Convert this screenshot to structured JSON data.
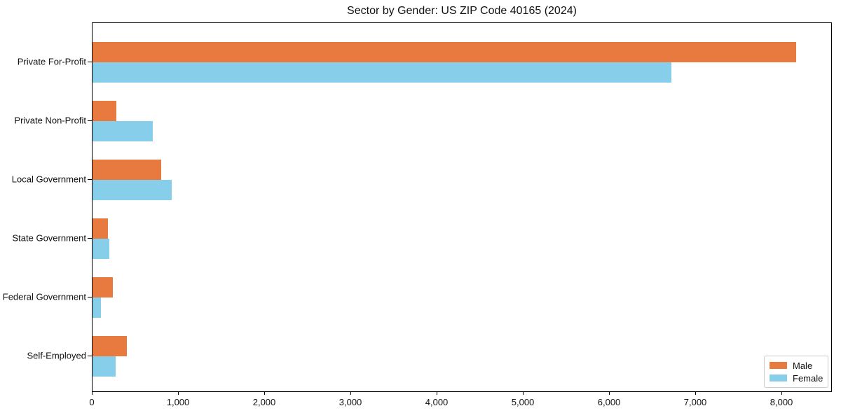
{
  "chart_data": {
    "type": "bar",
    "orientation": "horizontal",
    "title": "Sector by Gender: US ZIP Code 40165 (2024)",
    "xlabel": "",
    "ylabel": "",
    "categories": [
      "Private For-Profit",
      "Private Non-Profit",
      "Local Government",
      "State Government",
      "Federal Government",
      "Self-Employed"
    ],
    "series": [
      {
        "name": "Male",
        "color": "#E8793F",
        "values": [
          8160,
          275,
          800,
          175,
          235,
          400
        ]
      },
      {
        "name": "Female",
        "color": "#87CEEB",
        "values": [
          6715,
          700,
          920,
          195,
          100,
          265
        ]
      }
    ],
    "xlim": [
      0,
      8585
    ],
    "xticks": [
      0,
      1000,
      2000,
      3000,
      4000,
      5000,
      6000,
      7000,
      8000
    ],
    "xtick_labels": [
      "0",
      "1,000",
      "2,000",
      "3,000",
      "4,000",
      "5,000",
      "6,000",
      "7,000",
      "8,000"
    ],
    "grid": false,
    "legend_position": "lower right"
  },
  "legend": {
    "items": [
      {
        "label": "Male",
        "color": "#E8793F"
      },
      {
        "label": "Female",
        "color": "#87CEEB"
      }
    ]
  },
  "colors": {
    "male": "#E8793F",
    "female": "#87CEEB",
    "spine": "#000000",
    "legend_border": "#cccccc",
    "background": "#ffffff"
  }
}
